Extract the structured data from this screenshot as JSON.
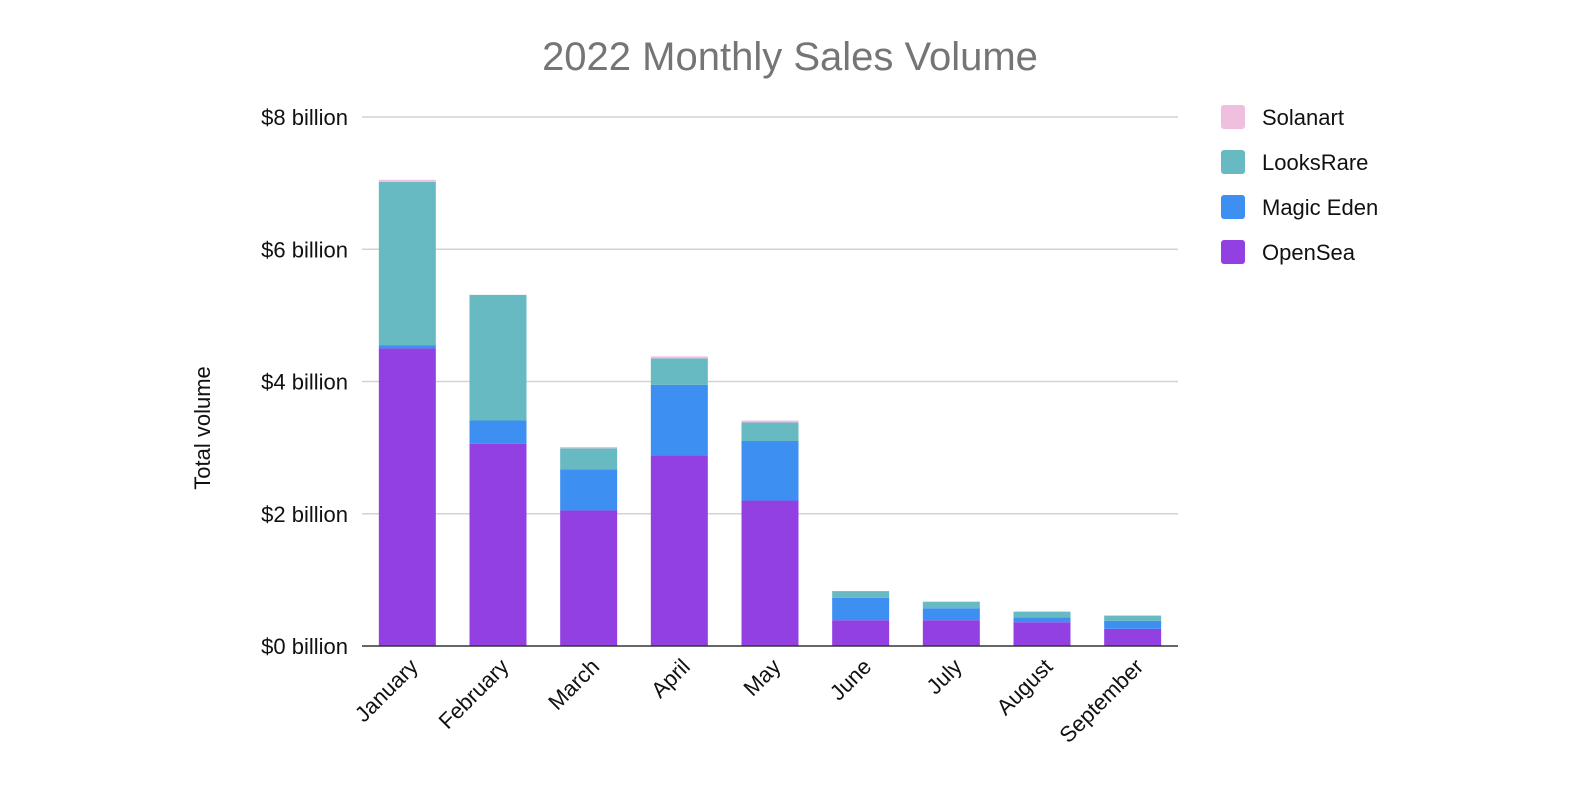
{
  "chart_data": {
    "type": "bar",
    "stacked": true,
    "title": "2022 Monthly Sales Volume",
    "xlabel": "",
    "ylabel": "Total volume",
    "ylim": [
      0,
      8
    ],
    "yticks": [
      0,
      2,
      4,
      6,
      8
    ],
    "ytick_labels": [
      "$0 billion",
      "$2 billion",
      "$4 billion",
      "$6 billion",
      "$8 billion"
    ],
    "unit": "billion USD",
    "grid": true,
    "legend_position": "right",
    "categories": [
      "January",
      "February",
      "March",
      "April",
      "May",
      "June",
      "July",
      "August",
      "September"
    ],
    "series": [
      {
        "name": "OpenSea",
        "color": "#9340e3",
        "values": [
          4.5,
          3.06,
          2.05,
          2.88,
          2.2,
          0.39,
          0.39,
          0.36,
          0.26
        ]
      },
      {
        "name": "Magic Eden",
        "color": "#3d8ff2",
        "values": [
          0.05,
          0.35,
          0.62,
          1.07,
          0.9,
          0.34,
          0.18,
          0.07,
          0.12
        ]
      },
      {
        "name": "LooksRare",
        "color": "#67b9c2",
        "values": [
          2.47,
          1.9,
          0.32,
          0.4,
          0.28,
          0.1,
          0.1,
          0.09,
          0.08
        ]
      },
      {
        "name": "Solanart",
        "color": "#f0bfe0",
        "values": [
          0.03,
          0.0,
          0.02,
          0.03,
          0.03,
          0.0,
          0.0,
          0.0,
          0.0
        ]
      }
    ],
    "legend_order": [
      "Solanart",
      "LooksRare",
      "Magic Eden",
      "OpenSea"
    ]
  }
}
